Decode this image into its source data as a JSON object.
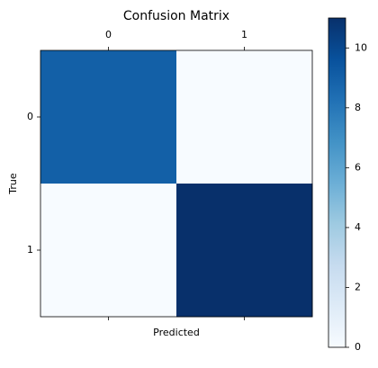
{
  "chart_data": {
    "type": "heatmap",
    "title": "Confusion Matrix",
    "xlabel": "Predicted",
    "ylabel": "True",
    "x_categories": [
      "0",
      "1"
    ],
    "y_categories": [
      "0",
      "1"
    ],
    "values": [
      [
        9,
        0
      ],
      [
        0,
        11
      ]
    ],
    "colormap": "Blues",
    "colorbar_lim": [
      0,
      11
    ],
    "colorbar_ticks": [
      0,
      2,
      4,
      6,
      8,
      10
    ]
  }
}
